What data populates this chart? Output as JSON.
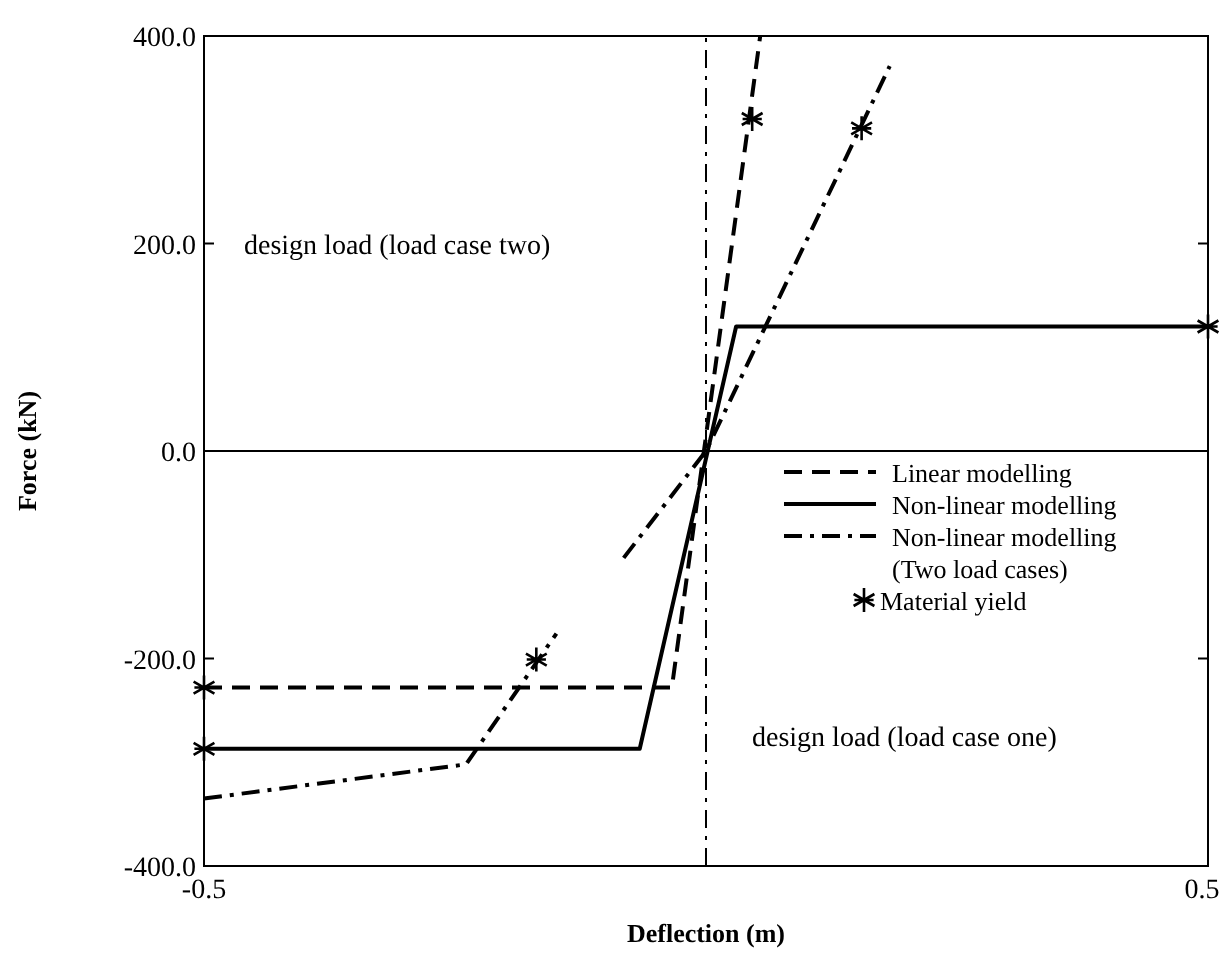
{
  "chart_data": {
    "type": "line",
    "xlabel": "Deflection (m)",
    "ylabel": "Force (kN)",
    "xlim": [
      -0.5,
      0.5
    ],
    "xticks": [
      -0.5,
      0.5
    ],
    "ylim": [
      -400,
      400
    ],
    "yticks": [
      {
        "value": -400,
        "label": "-400.0"
      },
      {
        "value": -200,
        "label": "-200.0"
      },
      {
        "value": 0,
        "label": "0.0"
      },
      {
        "value": 200,
        "label": "200.0"
      },
      {
        "value": 400,
        "label": "400.0"
      }
    ],
    "series": [
      {
        "name": "Linear modelling",
        "color": "#000000",
        "line_style": "dashed",
        "marker": "none",
        "x": [
          -0.5,
          -0.034,
          0.054
        ],
        "values": [
          -228,
          -228,
          400
        ]
      },
      {
        "name": "Non-linear modelling",
        "color": "#000000",
        "line_style": "solid",
        "marker": "none",
        "x": [
          -0.5,
          -0.066,
          0.03,
          0.5
        ],
        "values": [
          -287,
          -287,
          120,
          120
        ]
      },
      {
        "name": "Non-linear modelling\n(Two load cases)",
        "color": "#000000",
        "line_style": "dashdot",
        "marker": "none",
        "x": [
          -0.5,
          -0.239,
          -0.149,
          -0.12,
          -0.082,
          0,
          0.183
        ],
        "values": [
          -335,
          -302,
          -176,
          null,
          -103,
          0,
          371
        ]
      },
      {
        "name": "Material yield",
        "type": "scatter",
        "color": "#000000",
        "marker": "cross",
        "x": [
          -0.5,
          0.046,
          -0.5,
          0.5,
          -0.169,
          0.155
        ],
        "values": [
          -228,
          320,
          -287,
          120,
          -201,
          311
        ]
      }
    ],
    "ref_lines": [
      {
        "axis": "x",
        "value": 0,
        "line_style": "dashdot"
      },
      {
        "axis": "y",
        "value": 0,
        "line_style": "solid"
      }
    ],
    "annotations": [
      "design load (load case two)",
      "design load (load case one)"
    ],
    "legend": "right",
    "grid": false
  }
}
